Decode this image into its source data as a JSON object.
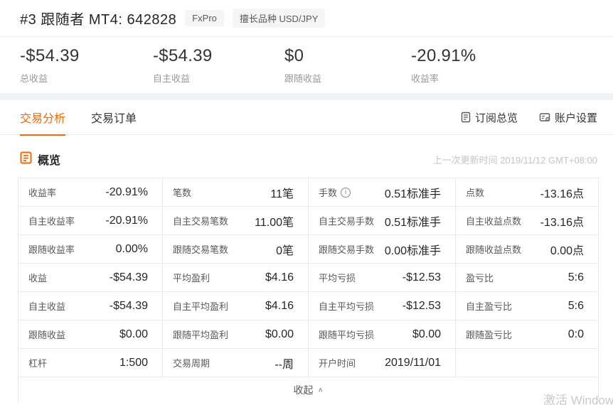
{
  "header": {
    "title": "#3 跟随者 MT4: 642828",
    "badges": [
      "FxPro",
      "擅长品种 USD/JPY"
    ]
  },
  "stats": [
    {
      "value": "-$54.39",
      "label": "总收益"
    },
    {
      "value": "-$54.39",
      "label": "自主收益"
    },
    {
      "value": "$0",
      "label": "跟随收益"
    },
    {
      "value": "-20.91%",
      "label": "收益率"
    }
  ],
  "tabs": [
    {
      "label": "交易分析",
      "active": true
    },
    {
      "label": "交易订单",
      "active": false
    }
  ],
  "actions": [
    {
      "label": "订阅总览",
      "icon": "subscription-overview-icon"
    },
    {
      "label": "账户设置",
      "icon": "account-settings-icon"
    }
  ],
  "overview": {
    "title": "概览",
    "title_icon": "document-icon",
    "last_update": "上一次更新时间 2019/11/12 GMT+08:00",
    "collapse_label": "收起",
    "collapse_icon": "chevron-up-icon",
    "rows": [
      [
        {
          "label": "收益率",
          "value": "-20.91%"
        },
        {
          "label": "笔数",
          "value": "11笔"
        },
        {
          "label": "手数",
          "value": "0.51标准手",
          "info": true
        },
        {
          "label": "点数",
          "value": "-13.16点"
        }
      ],
      [
        {
          "label": "自主收益率",
          "value": "-20.91%"
        },
        {
          "label": "自主交易笔数",
          "value": "11.00笔"
        },
        {
          "label": "自主交易手数",
          "value": "0.51标准手"
        },
        {
          "label": "自主收益点数",
          "value": "-13.16点"
        }
      ],
      [
        {
          "label": "跟随收益率",
          "value": "0.00%"
        },
        {
          "label": "跟随交易笔数",
          "value": "0笔"
        },
        {
          "label": "跟随交易手数",
          "value": "0.00标准手"
        },
        {
          "label": "跟随收益点数",
          "value": "0.00点"
        }
      ],
      [
        {
          "label": "收益",
          "value": "-$54.39"
        },
        {
          "label": "平均盈利",
          "value": "$4.16"
        },
        {
          "label": "平均亏损",
          "value": "-$12.53"
        },
        {
          "label": "盈亏比",
          "value": "5:6"
        }
      ],
      [
        {
          "label": "自主收益",
          "value": "-$54.39"
        },
        {
          "label": "自主平均盈利",
          "value": "$4.16"
        },
        {
          "label": "自主平均亏损",
          "value": "-$12.53"
        },
        {
          "label": "自主盈亏比",
          "value": "5:6"
        }
      ],
      [
        {
          "label": "跟随收益",
          "value": "$0.00"
        },
        {
          "label": "跟随平均盈利",
          "value": "$0.00"
        },
        {
          "label": "跟随平均亏损",
          "value": "$0.00"
        },
        {
          "label": "跟随盈亏比",
          "value": "0:0"
        }
      ],
      [
        {
          "label": "杠杆",
          "value": "1:500"
        },
        {
          "label": "交易周期",
          "value": "--周"
        },
        {
          "label": "开户时间",
          "value": "2019/11/01"
        },
        {
          "label": "",
          "value": ""
        }
      ]
    ]
  },
  "watermark": "激活 Windows",
  "colors": {
    "accent": "#ff6600",
    "border": "#e9e9e9",
    "label_gray": "#595959",
    "value_dark": "#262626",
    "muted": "#c4c4c4"
  }
}
